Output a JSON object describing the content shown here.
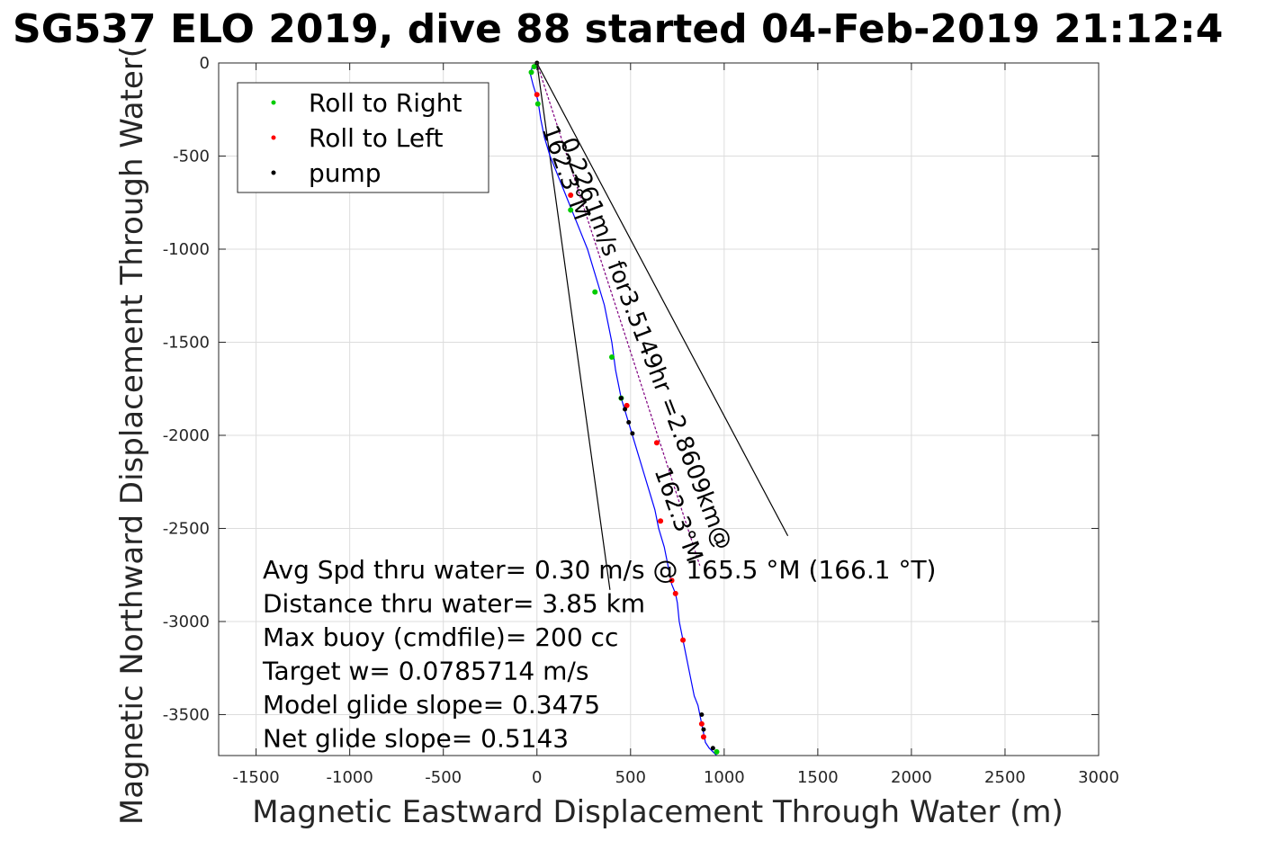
{
  "chart_data": {
    "type": "line",
    "title": "SG537 ELO 2019, dive 88 started 04-Feb-2019 21:12:4",
    "xlabel": "Magnetic Eastward Displacement Through Water (m)",
    "ylabel": "Magnetic Northward Displacement Through Water(",
    "xlim": [
      -1700,
      3000
    ],
    "ylim": [
      -3720,
      0
    ],
    "xticks": [
      -1500,
      -1000,
      -500,
      0,
      500,
      1000,
      1500,
      2000,
      2500,
      3000
    ],
    "xtick_labels": [
      "-1500",
      "-1000",
      "-500",
      "0",
      "500",
      "1000",
      "1500",
      "2000",
      "2500",
      "3000"
    ],
    "yticks": [
      0,
      -500,
      -1000,
      -1500,
      -2000,
      -2500,
      -3000,
      -3500
    ],
    "ytick_labels": [
      "0",
      "-500",
      "-1000",
      "-1500",
      "-2000",
      "-2500",
      "-3000",
      "-3500"
    ],
    "grid": true,
    "legend_position": "top-left",
    "legend": [
      {
        "label": "Roll to Right",
        "color": "#00cc00"
      },
      {
        "label": "Roll to Left",
        "color": "#ff0000"
      },
      {
        "label": "pump",
        "color": "#000000"
      }
    ],
    "series": [
      {
        "name": "track",
        "color": "#0000ff",
        "x": [
          0,
          -25,
          -35,
          -20,
          5,
          20,
          40,
          70,
          110,
          150,
          190,
          230,
          270,
          300,
          330,
          360,
          380,
          400,
          420,
          450,
          480,
          510,
          540,
          570,
          600,
          630,
          650,
          680,
          700,
          720,
          740,
          750,
          760,
          780,
          800,
          820,
          840,
          860,
          870,
          880,
          890,
          900,
          920,
          960
        ],
        "y": [
          0,
          -20,
          -60,
          -120,
          -200,
          -300,
          -400,
          -500,
          -600,
          -700,
          -800,
          -900,
          -1000,
          -1100,
          -1200,
          -1300,
          -1400,
          -1500,
          -1650,
          -1800,
          -1900,
          -2000,
          -2100,
          -2200,
          -2300,
          -2400,
          -2500,
          -2600,
          -2700,
          -2800,
          -2850,
          -2900,
          -3000,
          -3100,
          -3200,
          -3300,
          -3400,
          -3450,
          -3500,
          -3550,
          -3600,
          -3650,
          -3680,
          -3720
        ]
      }
    ],
    "lines": [
      {
        "name": "heading line",
        "color": "#000000",
        "x": [
          0,
          1340
        ],
        "y": [
          0,
          -2540
        ]
      },
      {
        "name": "current line",
        "color": "#800080",
        "x": [
          0,
          870
        ],
        "y": [
          0,
          -2700
        ]
      },
      {
        "name": "bearing line",
        "color": "#000000",
        "x": [
          0,
          390
        ],
        "y": [
          0,
          -2830
        ]
      }
    ],
    "markers": {
      "roll_right": {
        "color": "#00cc00",
        "x": [
          -30,
          -15,
          5,
          180,
          310,
          400,
          450,
          960
        ],
        "y": [
          -50,
          -20,
          -220,
          -790,
          -1230,
          -1580,
          -1800,
          -3700
        ]
      },
      "roll_left": {
        "color": "#ff0000",
        "x": [
          0,
          180,
          480,
          640,
          660,
          720,
          740,
          780,
          880,
          890
        ],
        "y": [
          -170,
          -710,
          -1840,
          -2040,
          -2460,
          -2780,
          -2850,
          -3100,
          -3550,
          -3620
        ]
      },
      "pump": {
        "color": "#000000",
        "x": [
          0,
          450,
          470,
          490,
          510,
          880,
          890,
          940
        ],
        "y": [
          0,
          -1800,
          -1860,
          -1930,
          -1990,
          -3500,
          -3580,
          -3680
        ]
      }
    },
    "annotations": [
      {
        "text": "0.2261m/s for3.5149hr =2.8609km@",
        "x": 900,
        "y": -2900,
        "angle": 69
      },
      {
        "text": "162.3°M",
        "x": 270,
        "y": -830,
        "angle": 70
      },
      {
        "text": "162.3°M",
        "x": 560,
        "y": -2060,
        "angle": 70
      }
    ],
    "stats": [
      "Avg Spd thru water=  0.30 m/s @ 165.5 °M (166.1 °T)",
      "Distance thru water=  3.85 km",
      "Max buoy (cmdfile)= 200 cc",
      "Target w= 0.0785714 m/s",
      "Model glide slope= 0.3475",
      "Net glide slope= 0.5143"
    ]
  }
}
